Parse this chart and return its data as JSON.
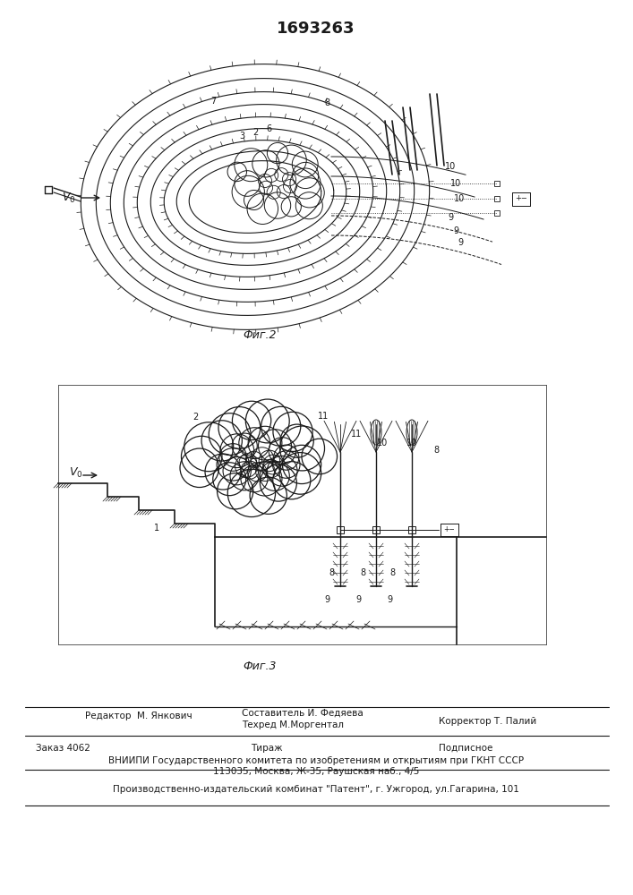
{
  "title": "1693263",
  "fig2_caption": "Фиг.2",
  "fig3_caption": "Фиг.3",
  "editor_line": "Редактор  М. Янкович",
  "sostavitel_line": "Составитель И. Федяева",
  "tekhred_line": "Техред М.Моргентал",
  "korrektor_line": "Корректор Т. Палий",
  "zakaz_line": "Заказ 4062",
  "tirazh_line": "Тираж",
  "podpisnoe_line": "Подписное",
  "vniiipi_line": "ВНИИПИ Государственного комитета по изобретениям и открытиям при ГКНТ СССР",
  "address_line": "113035, Москва, Ж-35, Раушская наб., 4/5",
  "proizv_line": "Производственно-издательский комбинат \"Патент\", г. Ужгород, ул.Гагарина, 101",
  "bg_color": "#ffffff",
  "line_color": "#1a1a1a"
}
